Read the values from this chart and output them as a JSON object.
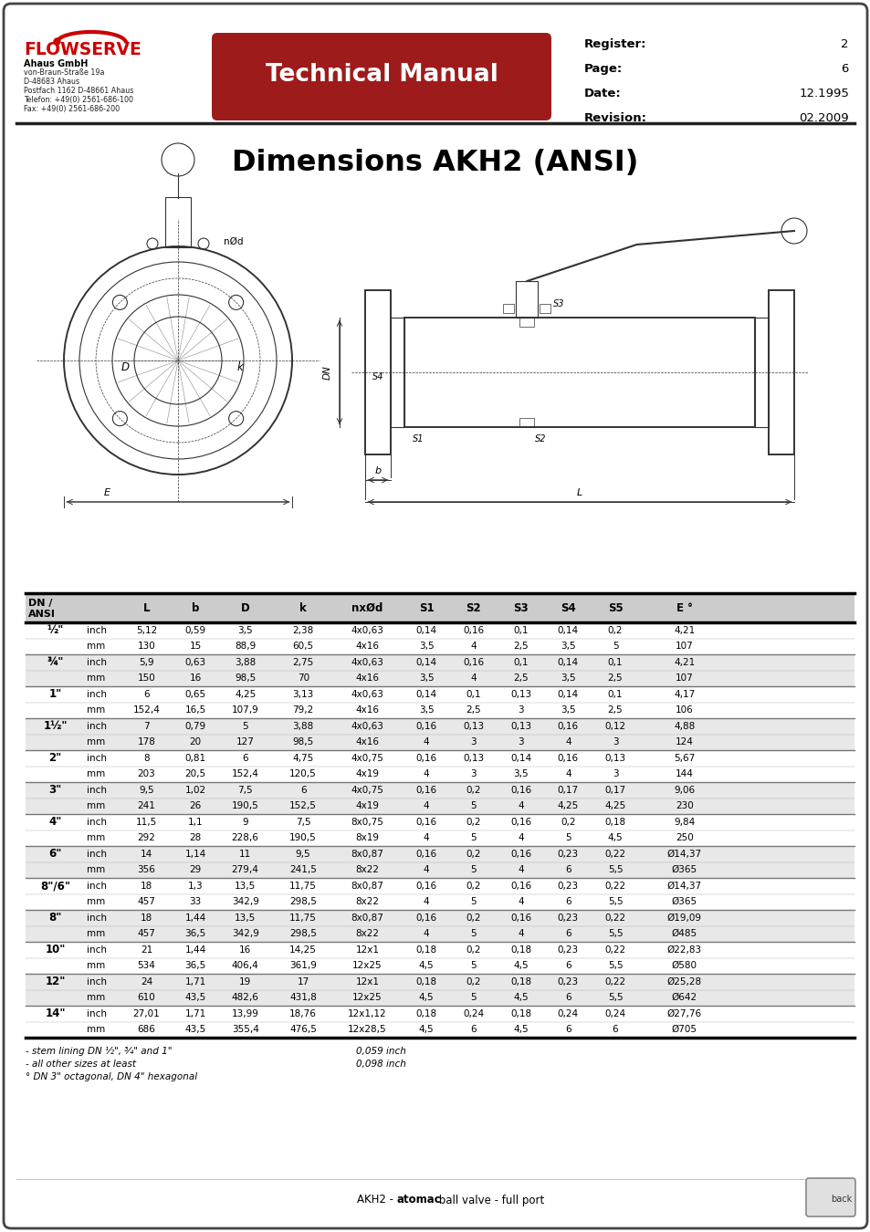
{
  "title": "Dimensions AKH2 (ANSI)",
  "header": {
    "company": "FLOWSERVE",
    "address_lines": [
      "Ahaus GmbH",
      "von-Braun-Straße 19a",
      "D-48683 Ahaus",
      "Postfach 1162 D-48661 Ahaus",
      "Telefon: +49(0) 2561-686-100",
      "Fax: +49(0) 2561-686-200"
    ],
    "tech_manual_text": "Technical Manual",
    "register_label": "Register:",
    "register_value": "2",
    "page_label": "Page:",
    "page_value": "6",
    "date_label": "Date:",
    "date_value": "12.1995",
    "revision_label": "Revision:",
    "revision_value": "02.2009"
  },
  "footer_text": "AKH2 - atomac ball valve - full port",
  "table_col_headers": [
    "DN /\nANSI",
    "",
    "L",
    "b",
    "D",
    "k",
    "nxØd",
    "S1",
    "S2",
    "S3",
    "S4",
    "S5",
    "E °"
  ],
  "table_rows": [
    [
      "½\"",
      "inch",
      "5,12",
      "0,59",
      "3,5",
      "2,38",
      "4x0,63",
      "0,14",
      "0,16",
      "0,1",
      "0,14",
      "0,2",
      "4,21"
    ],
    [
      "",
      "mm",
      "130",
      "15",
      "88,9",
      "60,5",
      "4x16",
      "3,5",
      "4",
      "2,5",
      "3,5",
      "5",
      "107"
    ],
    [
      "¾\"",
      "inch",
      "5,9",
      "0,63",
      "3,88",
      "2,75",
      "4x0,63",
      "0,14",
      "0,16",
      "0,1",
      "0,14",
      "0,1",
      "4,21"
    ],
    [
      "",
      "mm",
      "150",
      "16",
      "98,5",
      "70",
      "4x16",
      "3,5",
      "4",
      "2,5",
      "3,5",
      "2,5",
      "107"
    ],
    [
      "1\"",
      "inch",
      "6",
      "0,65",
      "4,25",
      "3,13",
      "4x0,63",
      "0,14",
      "0,1",
      "0,13",
      "0,14",
      "0,1",
      "4,17"
    ],
    [
      "",
      "mm",
      "152,4",
      "16,5",
      "107,9",
      "79,2",
      "4x16",
      "3,5",
      "2,5",
      "3",
      "3,5",
      "2,5",
      "106"
    ],
    [
      "1½\"",
      "inch",
      "7",
      "0,79",
      "5",
      "3,88",
      "4x0,63",
      "0,16",
      "0,13",
      "0,13",
      "0,16",
      "0,12",
      "4,88"
    ],
    [
      "",
      "mm",
      "178",
      "20",
      "127",
      "98,5",
      "4x16",
      "4",
      "3",
      "3",
      "4",
      "3",
      "124"
    ],
    [
      "2\"",
      "inch",
      "8",
      "0,81",
      "6",
      "4,75",
      "4x0,75",
      "0,16",
      "0,13",
      "0,14",
      "0,16",
      "0,13",
      "5,67"
    ],
    [
      "",
      "mm",
      "203",
      "20,5",
      "152,4",
      "120,5",
      "4x19",
      "4",
      "3",
      "3,5",
      "4",
      "3",
      "144"
    ],
    [
      "3\"",
      "inch",
      "9,5",
      "1,02",
      "7,5",
      "6",
      "4x0,75",
      "0,16",
      "0,2",
      "0,16",
      "0,17",
      "0,17",
      "9,06"
    ],
    [
      "",
      "mm",
      "241",
      "26",
      "190,5",
      "152,5",
      "4x19",
      "4",
      "5",
      "4",
      "4,25",
      "4,25",
      "230"
    ],
    [
      "4\"",
      "inch",
      "11,5",
      "1,1",
      "9",
      "7,5",
      "8x0,75",
      "0,16",
      "0,2",
      "0,16",
      "0,2",
      "0,18",
      "9,84"
    ],
    [
      "",
      "mm",
      "292",
      "28",
      "228,6",
      "190,5",
      "8x19",
      "4",
      "5",
      "4",
      "5",
      "4,5",
      "250"
    ],
    [
      "6\"",
      "inch",
      "14",
      "1,14",
      "11",
      "9,5",
      "8x0,87",
      "0,16",
      "0,2",
      "0,16",
      "0,23",
      "0,22",
      "Ø14,37"
    ],
    [
      "",
      "mm",
      "356",
      "29",
      "279,4",
      "241,5",
      "8x22",
      "4",
      "5",
      "4",
      "6",
      "5,5",
      "Ø365"
    ],
    [
      "8\"/6\"",
      "inch",
      "18",
      "1,3",
      "13,5",
      "11,75",
      "8x0,87",
      "0,16",
      "0,2",
      "0,16",
      "0,23",
      "0,22",
      "Ø14,37"
    ],
    [
      "",
      "mm",
      "457",
      "33",
      "342,9",
      "298,5",
      "8x22",
      "4",
      "5",
      "4",
      "6",
      "5,5",
      "Ø365"
    ],
    [
      "8\"",
      "inch",
      "18",
      "1,44",
      "13,5",
      "11,75",
      "8x0,87",
      "0,16",
      "0,2",
      "0,16",
      "0,23",
      "0,22",
      "Ø19,09"
    ],
    [
      "",
      "mm",
      "457",
      "36,5",
      "342,9",
      "298,5",
      "8x22",
      "4",
      "5",
      "4",
      "6",
      "5,5",
      "Ø485"
    ],
    [
      "10\"",
      "inch",
      "21",
      "1,44",
      "16",
      "14,25",
      "12x1",
      "0,18",
      "0,2",
      "0,18",
      "0,23",
      "0,22",
      "Ø22,83"
    ],
    [
      "",
      "mm",
      "534",
      "36,5",
      "406,4",
      "361,9",
      "12x25",
      "4,5",
      "5",
      "4,5",
      "6",
      "5,5",
      "Ø580"
    ],
    [
      "12\"",
      "inch",
      "24",
      "1,71",
      "19",
      "17",
      "12x1",
      "0,18",
      "0,2",
      "0,18",
      "0,23",
      "0,22",
      "Ø25,28"
    ],
    [
      "",
      "mm",
      "610",
      "43,5",
      "482,6",
      "431,8",
      "12x25",
      "4,5",
      "5",
      "4,5",
      "6",
      "5,5",
      "Ø642"
    ],
    [
      "14\"",
      "inch",
      "27,01",
      "1,71",
      "13,99",
      "18,76",
      "12x1,12",
      "0,18",
      "0,24",
      "0,18",
      "0,24",
      "0,24",
      "Ø27,76"
    ],
    [
      "",
      "mm",
      "686",
      "43,5",
      "355,4",
      "476,5",
      "12x28,5",
      "4,5",
      "6",
      "4,5",
      "6",
      "6",
      "Ø705"
    ]
  ],
  "footnotes": [
    [
      "- stem lining DN ½\", ¾\" and 1\"",
      "0,059 inch"
    ],
    [
      "- all other sizes at least",
      "0,098 inch"
    ],
    [
      "° DN 3\" octagonal, DN 4\" hexagonal",
      ""
    ]
  ],
  "bg_color": "#ffffff",
  "header_red": "#9e1b1b",
  "shade_color": "#e8e8e8",
  "line_color": "#333333"
}
